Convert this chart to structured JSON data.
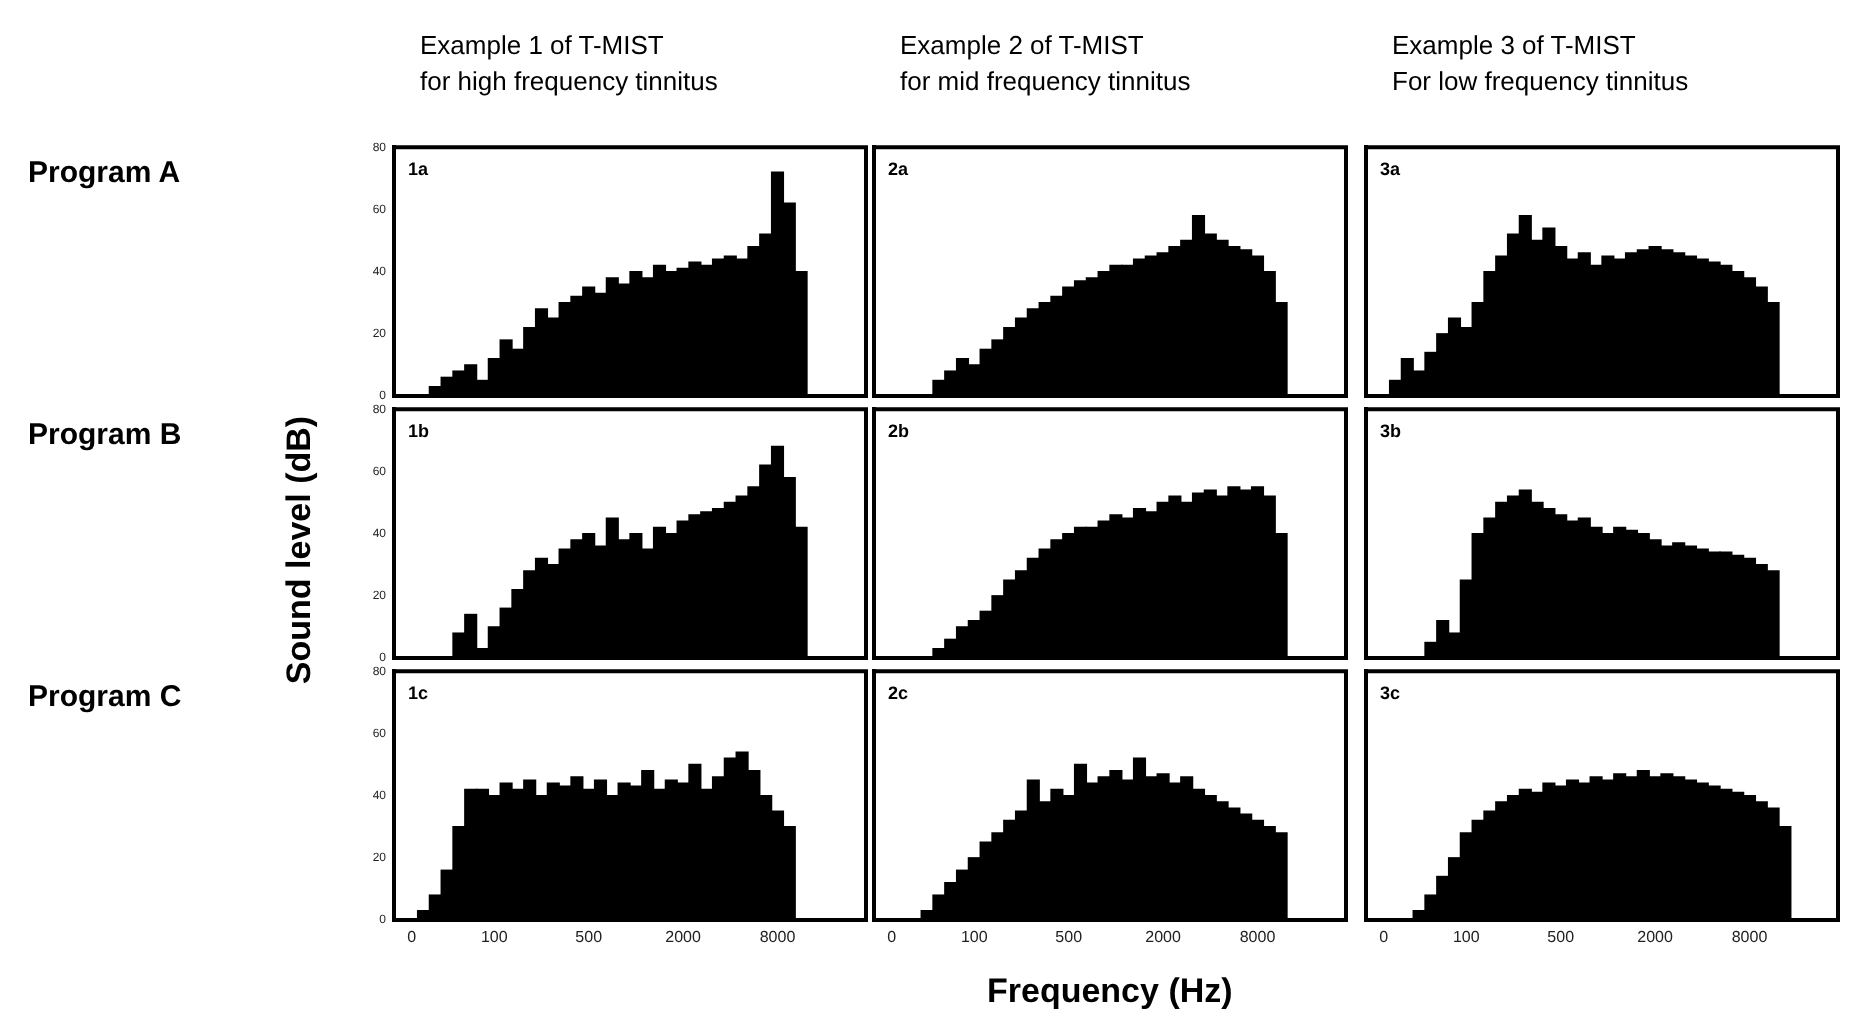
{
  "chart_data": [
    {
      "type": "bar",
      "title": "Example 1 of T-MIST\nfor high frequency tinnitus",
      "annotations": [
        "1a",
        "Program A"
      ],
      "tick_labels": "y",
      "color": "#000000",
      "ylim": [
        0,
        80
      ],
      "yticks": [
        0,
        20,
        40,
        60,
        80
      ],
      "categories": [
        null,
        "0",
        null,
        null,
        null,
        null,
        null,
        null,
        "100",
        null,
        null,
        null,
        null,
        null,
        null,
        null,
        "500",
        null,
        null,
        null,
        null,
        null,
        null,
        null,
        "2000",
        null,
        null,
        null,
        null,
        null,
        null,
        null,
        "8000",
        null,
        null,
        null,
        null,
        null,
        null,
        null
      ],
      "values": [
        0,
        0,
        0,
        3,
        6,
        8,
        10,
        5,
        12,
        18,
        15,
        22,
        28,
        25,
        30,
        32,
        35,
        33,
        38,
        36,
        40,
        38,
        42,
        40,
        41,
        43,
        42,
        44,
        45,
        44,
        48,
        52,
        72,
        62,
        40,
        0,
        0,
        0,
        0,
        0
      ]
    },
    {
      "type": "bar",
      "title": "Example 2 of T-MIST\nfor mid frequency tinnitus",
      "annotations": [
        "2a"
      ],
      "tick_labels": false,
      "color": "#000000",
      "ylim": [
        0,
        80
      ],
      "yticks": [
        0,
        20,
        40,
        60,
        80
      ],
      "categories": [
        null,
        "0",
        null,
        null,
        null,
        null,
        null,
        null,
        "100",
        null,
        null,
        null,
        null,
        null,
        null,
        null,
        "500",
        null,
        null,
        null,
        null,
        null,
        null,
        null,
        "2000",
        null,
        null,
        null,
        null,
        null,
        null,
        null,
        "8000",
        null,
        null,
        null,
        null,
        null,
        null,
        null
      ],
      "values": [
        0,
        0,
        0,
        0,
        0,
        5,
        8,
        12,
        10,
        15,
        18,
        22,
        25,
        28,
        30,
        32,
        35,
        37,
        38,
        40,
        42,
        42,
        44,
        45,
        46,
        48,
        50,
        58,
        52,
        50,
        48,
        47,
        45,
        40,
        30,
        0,
        0,
        0,
        0,
        0
      ]
    },
    {
      "type": "bar",
      "title": "Example 3 of T-MIST\nFor low frequency tinnitus",
      "annotations": [
        "3a"
      ],
      "tick_labels": false,
      "color": "#000000",
      "ylim": [
        0,
        80
      ],
      "yticks": [
        0,
        20,
        40,
        60,
        80
      ],
      "categories": [
        null,
        "0",
        null,
        null,
        null,
        null,
        null,
        null,
        "100",
        null,
        null,
        null,
        null,
        null,
        null,
        null,
        "500",
        null,
        null,
        null,
        null,
        null,
        null,
        null,
        "2000",
        null,
        null,
        null,
        null,
        null,
        null,
        null,
        "8000",
        null,
        null,
        null,
        null,
        null,
        null,
        null
      ],
      "values": [
        0,
        0,
        5,
        12,
        8,
        14,
        20,
        25,
        22,
        30,
        40,
        45,
        52,
        58,
        50,
        54,
        48,
        44,
        46,
        42,
        45,
        44,
        46,
        47,
        48,
        47,
        46,
        45,
        44,
        43,
        42,
        40,
        38,
        35,
        30,
        0,
        0,
        0,
        0,
        0
      ]
    },
    {
      "type": "bar",
      "ylabel": "Sound level (dB)",
      "annotations": [
        "1b",
        "Program B"
      ],
      "tick_labels": "y",
      "color": "#000000",
      "ylim": [
        0,
        80
      ],
      "yticks": [
        0,
        20,
        40,
        60,
        80
      ],
      "categories": [
        null,
        "0",
        null,
        null,
        null,
        null,
        null,
        null,
        "100",
        null,
        null,
        null,
        null,
        null,
        null,
        null,
        "500",
        null,
        null,
        null,
        null,
        null,
        null,
        null,
        "2000",
        null,
        null,
        null,
        null,
        null,
        null,
        null,
        "8000",
        null,
        null,
        null,
        null,
        null,
        null,
        null
      ],
      "values": [
        0,
        0,
        0,
        0,
        0,
        8,
        14,
        3,
        10,
        16,
        22,
        28,
        32,
        30,
        35,
        38,
        40,
        36,
        45,
        38,
        40,
        35,
        42,
        40,
        44,
        46,
        47,
        48,
        50,
        52,
        55,
        62,
        68,
        58,
        42,
        0,
        0,
        0,
        0,
        0
      ]
    },
    {
      "type": "bar",
      "annotations": [
        "2b"
      ],
      "tick_labels": false,
      "color": "#000000",
      "ylim": [
        0,
        80
      ],
      "yticks": [
        0,
        20,
        40,
        60,
        80
      ],
      "categories": [
        null,
        "0",
        null,
        null,
        null,
        null,
        null,
        null,
        "100",
        null,
        null,
        null,
        null,
        null,
        null,
        null,
        "500",
        null,
        null,
        null,
        null,
        null,
        null,
        null,
        "2000",
        null,
        null,
        null,
        null,
        null,
        null,
        null,
        "8000",
        null,
        null,
        null,
        null,
        null,
        null,
        null
      ],
      "values": [
        0,
        0,
        0,
        0,
        0,
        3,
        6,
        10,
        12,
        15,
        20,
        25,
        28,
        32,
        35,
        38,
        40,
        42,
        42,
        44,
        46,
        45,
        48,
        47,
        50,
        52,
        50,
        53,
        54,
        52,
        55,
        54,
        55,
        52,
        40,
        0,
        0,
        0,
        0,
        0
      ]
    },
    {
      "type": "bar",
      "annotations": [
        "3b"
      ],
      "tick_labels": false,
      "color": "#000000",
      "ylim": [
        0,
        80
      ],
      "yticks": [
        0,
        20,
        40,
        60,
        80
      ],
      "categories": [
        null,
        "0",
        null,
        null,
        null,
        null,
        null,
        null,
        "100",
        null,
        null,
        null,
        null,
        null,
        null,
        null,
        "500",
        null,
        null,
        null,
        null,
        null,
        null,
        null,
        "2000",
        null,
        null,
        null,
        null,
        null,
        null,
        null,
        "8000",
        null,
        null,
        null,
        null,
        null,
        null,
        null
      ],
      "values": [
        0,
        0,
        0,
        0,
        0,
        5,
        12,
        8,
        25,
        40,
        45,
        50,
        52,
        54,
        50,
        48,
        46,
        44,
        45,
        42,
        40,
        42,
        41,
        40,
        38,
        36,
        37,
        36,
        35,
        34,
        34,
        33,
        32,
        30,
        28,
        0,
        0,
        0,
        0,
        0
      ]
    },
    {
      "type": "bar",
      "annotations": [
        "1c",
        "Program C"
      ],
      "color": "#000000",
      "ylim": [
        0,
        80
      ],
      "yticks": [
        0,
        20,
        40,
        60,
        80
      ],
      "categories": [
        null,
        "0",
        null,
        null,
        null,
        null,
        null,
        null,
        "100",
        null,
        null,
        null,
        null,
        null,
        null,
        null,
        "500",
        null,
        null,
        null,
        null,
        null,
        null,
        null,
        "2000",
        null,
        null,
        null,
        null,
        null,
        null,
        null,
        "8000",
        null,
        null,
        null,
        null,
        null,
        null,
        null
      ],
      "values": [
        0,
        0,
        3,
        8,
        16,
        30,
        42,
        42,
        40,
        44,
        42,
        45,
        40,
        44,
        43,
        46,
        42,
        45,
        40,
        44,
        43,
        48,
        42,
        45,
        44,
        50,
        42,
        46,
        52,
        54,
        48,
        40,
        35,
        30,
        0,
        0,
        0,
        0,
        0,
        0
      ]
    },
    {
      "type": "bar",
      "xlabel": "Frequency (Hz)",
      "annotations": [
        "2c"
      ],
      "tick_labels": "x",
      "color": "#000000",
      "ylim": [
        0,
        80
      ],
      "yticks": [
        0,
        20,
        40,
        60,
        80
      ],
      "categories": [
        null,
        "0",
        null,
        null,
        null,
        null,
        null,
        null,
        "100",
        null,
        null,
        null,
        null,
        null,
        null,
        null,
        "500",
        null,
        null,
        null,
        null,
        null,
        null,
        null,
        "2000",
        null,
        null,
        null,
        null,
        null,
        null,
        null,
        "8000",
        null,
        null,
        null,
        null,
        null,
        null,
        null
      ],
      "values": [
        0,
        0,
        0,
        0,
        3,
        8,
        12,
        16,
        20,
        25,
        28,
        32,
        35,
        45,
        38,
        42,
        40,
        50,
        44,
        46,
        48,
        45,
        52,
        46,
        47,
        44,
        46,
        42,
        40,
        38,
        36,
        34,
        32,
        30,
        28,
        0,
        0,
        0,
        0,
        0
      ]
    },
    {
      "type": "bar",
      "annotations": [
        "3c"
      ],
      "tick_labels": "x",
      "color": "#000000",
      "ylim": [
        0,
        80
      ],
      "yticks": [
        0,
        20,
        40,
        60,
        80
      ],
      "categories": [
        null,
        "0",
        null,
        null,
        null,
        null,
        null,
        null,
        "100",
        null,
        null,
        null,
        null,
        null,
        null,
        null,
        "500",
        null,
        null,
        null,
        null,
        null,
        null,
        null,
        "2000",
        null,
        null,
        null,
        null,
        null,
        null,
        null,
        "8000",
        null,
        null,
        null,
        null,
        null,
        null,
        null
      ],
      "values": [
        0,
        0,
        0,
        0,
        3,
        8,
        14,
        20,
        28,
        32,
        35,
        38,
        40,
        42,
        41,
        44,
        43,
        45,
        44,
        46,
        45,
        47,
        46,
        48,
        46,
        47,
        46,
        45,
        44,
        43,
        42,
        41,
        40,
        38,
        36,
        30,
        0,
        0,
        0,
        0
      ]
    }
  ]
}
